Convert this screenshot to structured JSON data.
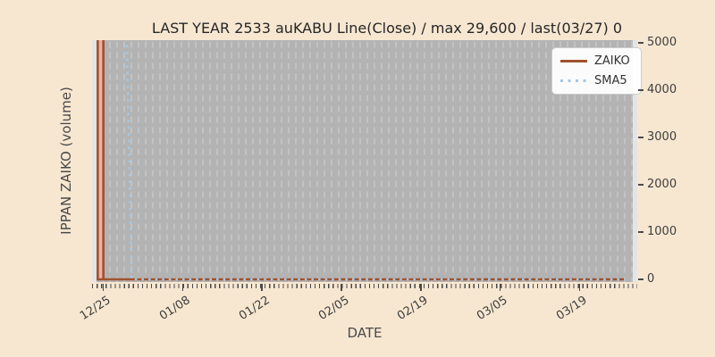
{
  "title": "LAST YEAR 2533 auKABU Line(Close) / max 29,600 / last(03/27) 0",
  "axes": {
    "x_label": "DATE",
    "y_label": "IPPAN ZAIKO (volume)",
    "x_tick_labels": [
      "12/25",
      "01/08",
      "01/22",
      "02/05",
      "02/19",
      "03/05",
      "03/19"
    ],
    "y_tick_labels": [
      "0",
      "1000",
      "2000",
      "3000",
      "4000",
      "5000"
    ]
  },
  "legend": {
    "items": [
      {
        "label": "ZAIKO",
        "style": "solid",
        "color": "#a0522d"
      },
      {
        "label": "SMA5",
        "style": "dotted",
        "color": "#a4c8e4"
      }
    ]
  },
  "colors": {
    "figure_background": "#f7e7d1",
    "plot_background_edge": "#e4e4e4",
    "plot_background_main": "#b3b3b3",
    "gridline_dash": "#c8c8c8",
    "zaiko_line": "#a0522d",
    "zaiko_fill": "#eeaea7",
    "sma5_line": "#a4c8e4",
    "tick_text": "#3d3d3d",
    "title_text": "#262626"
  },
  "chart_data": {
    "type": "line",
    "title": "LAST YEAR 2533 auKABU Line(Close) / max 29,600 / last(03/27) 0",
    "xlabel": "DATE",
    "ylabel": "IPPAN ZAIKO (volume)",
    "ylim": [
      0,
      5000
    ],
    "x_tick_labels": [
      "12/25",
      "01/08",
      "01/22",
      "02/05",
      "02/19",
      "03/05",
      "03/19"
    ],
    "y_ticks": [
      0,
      1000,
      2000,
      3000,
      4000,
      5000
    ],
    "y_axis_side": "right",
    "legend_position": "upper right",
    "grid": "vertical dashed gridlines only",
    "max_value": 29600,
    "last_date": "03/27",
    "last_value": 0,
    "series": [
      {
        "name": "ZAIKO",
        "style": "solid",
        "color": "#a0522d",
        "fill_under": true,
        "fill_color": "#eeaea7",
        "points": [
          [
            "12/24",
            29600
          ],
          [
            "12/25",
            29600
          ],
          [
            "12/25",
            0
          ],
          [
            "03/27",
            0
          ]
        ]
      },
      {
        "name": "SMA5",
        "style": "dotted",
        "color": "#a4c8e4",
        "points": [
          [
            "12/24",
            29600
          ],
          [
            "12/28",
            6500
          ],
          [
            "12/29",
            5920
          ],
          [
            "12/30",
            0
          ],
          [
            "03/27",
            0
          ]
        ]
      }
    ]
  }
}
